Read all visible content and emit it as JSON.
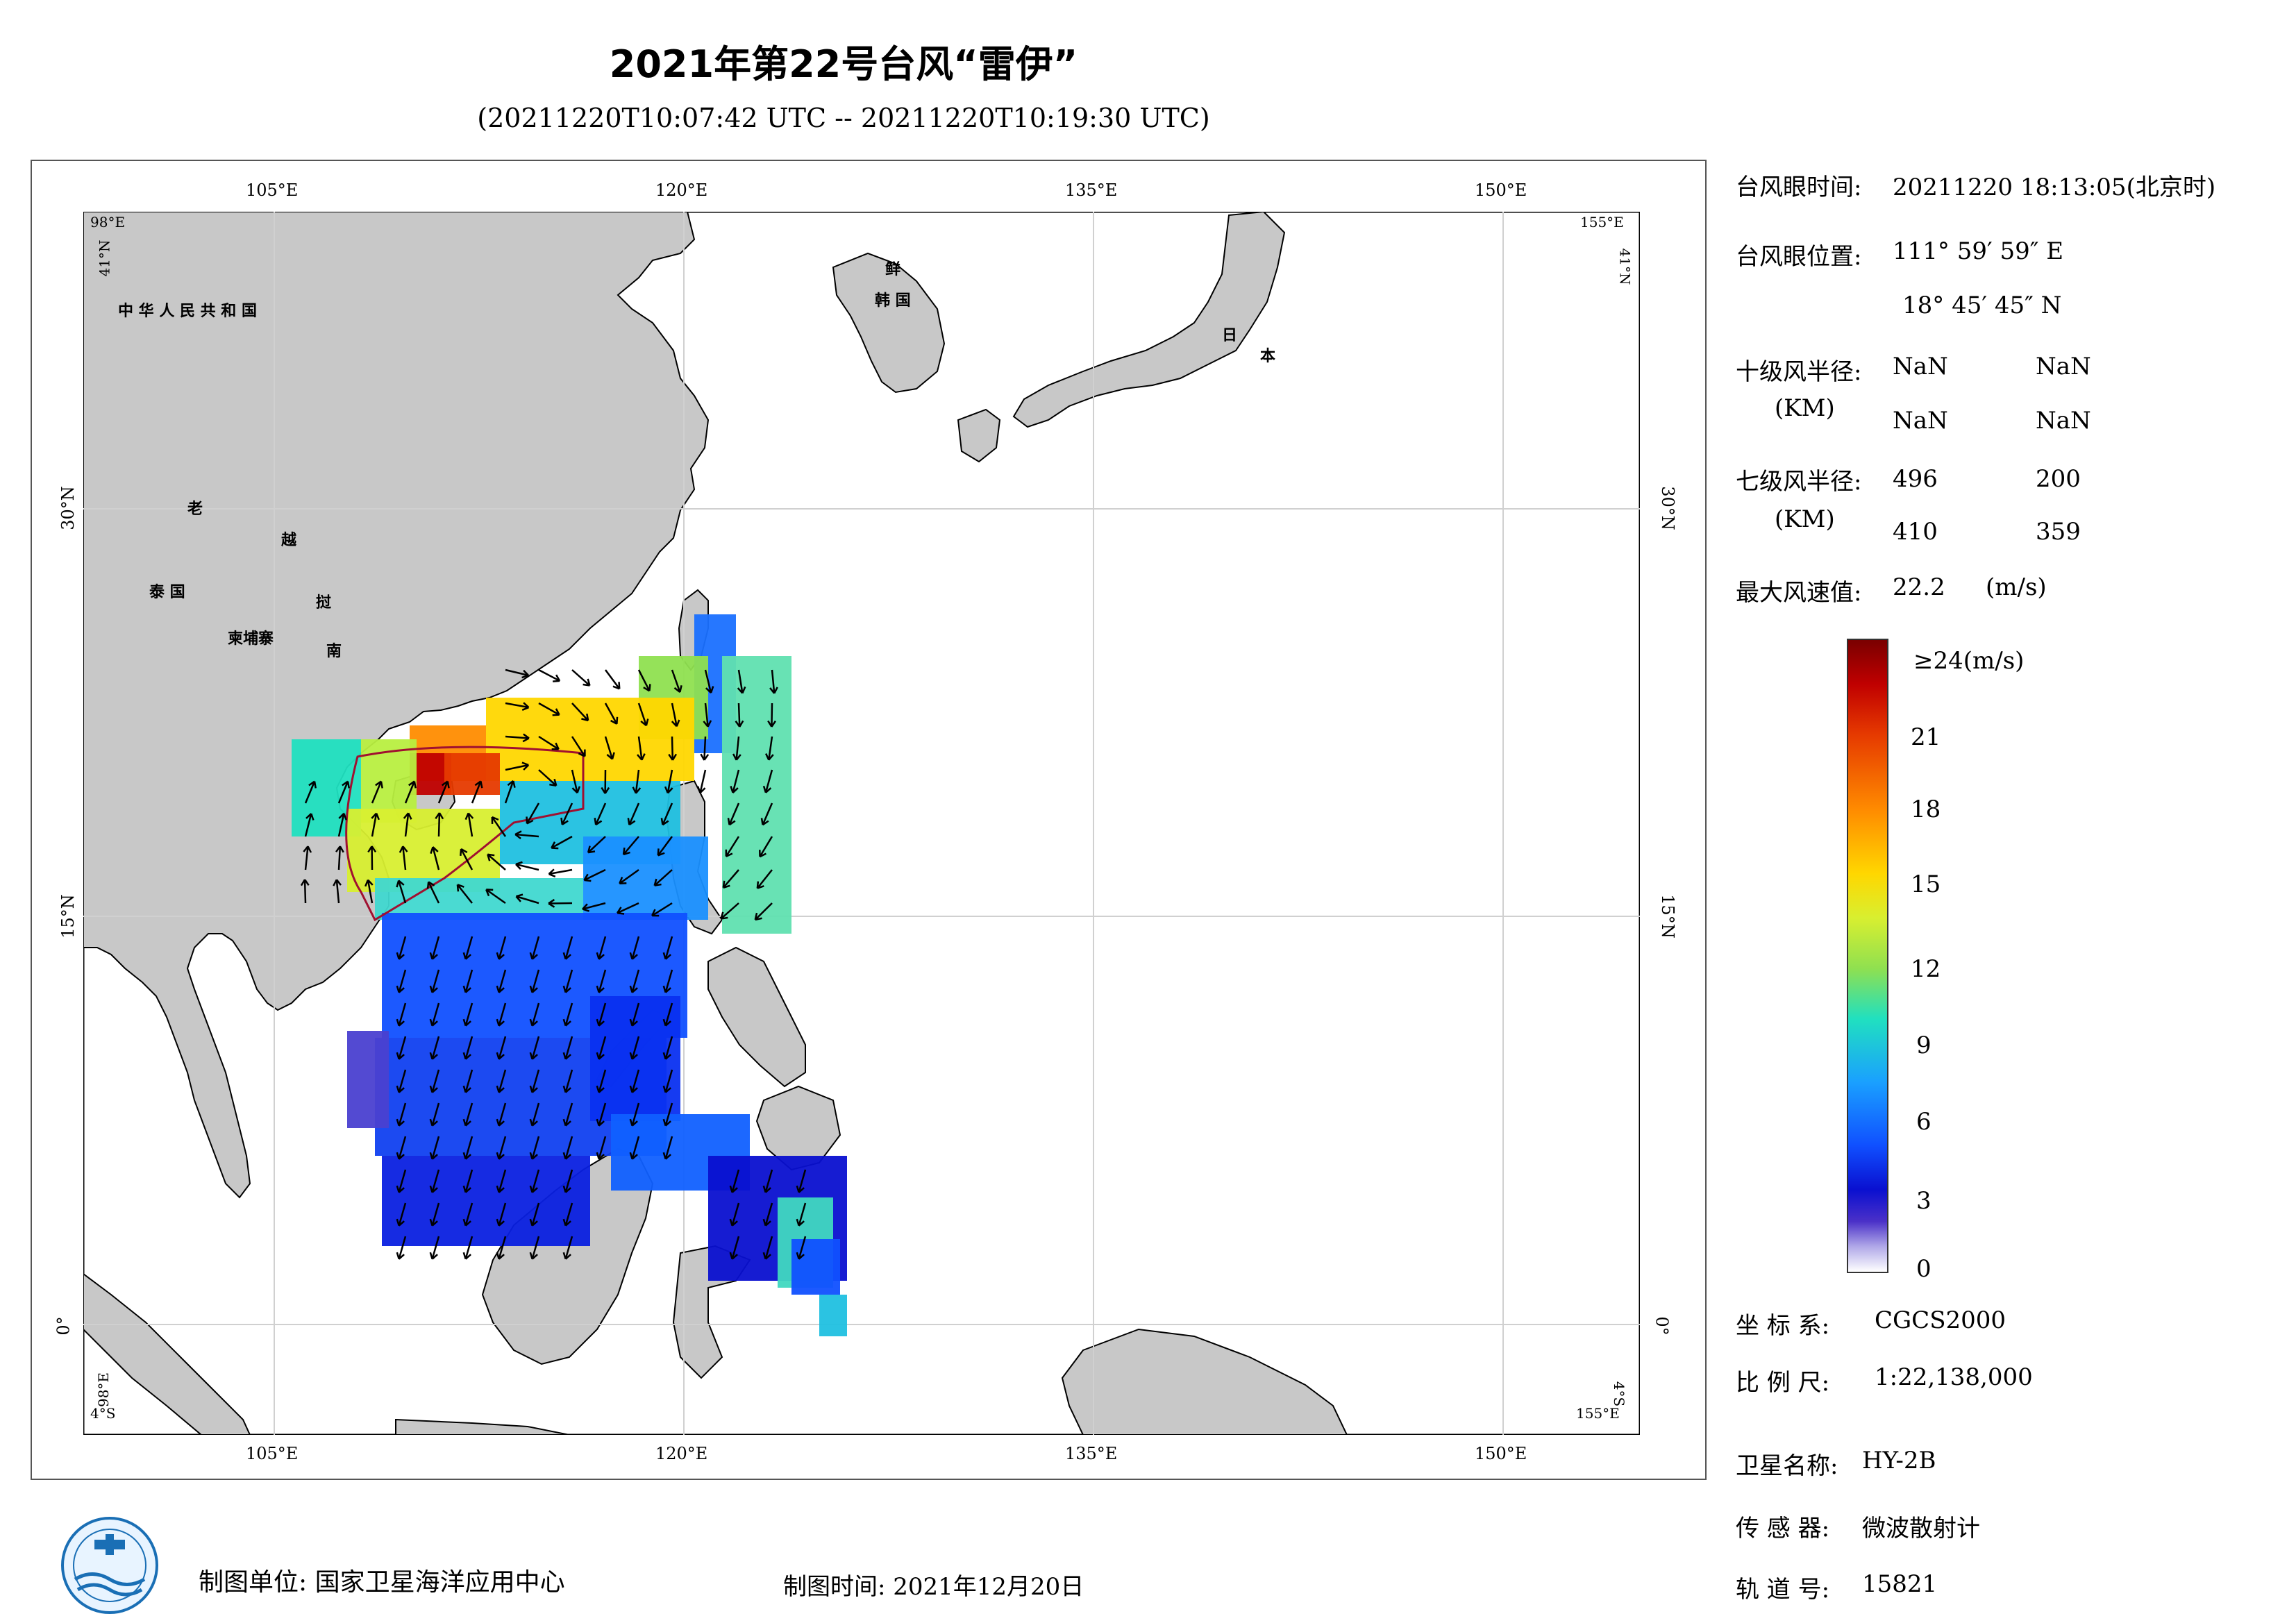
{
  "title": "2021年第22号台风“雷伊”",
  "subtitle": "(20211220T10:07:42 UTC -- 20211220T10:19:30 UTC)",
  "map": {
    "top_lon_labels": [
      "105°E",
      "120°E",
      "135°E",
      "150°E"
    ],
    "bottom_lon_labels": [
      "105°E",
      "120°E",
      "135°E",
      "150°E"
    ],
    "left_lat_labels": [
      "30°N",
      "15°N",
      "0°"
    ],
    "right_lat_labels": [
      "30°N",
      "15°N",
      "0°"
    ],
    "corner_labels": {
      "tl_lon": "98°E",
      "tl_lat": "41°N",
      "tr_lon": "155°E",
      "tr_lat": "41°N",
      "bl_lon": "98°E",
      "bl_lat": "4°S",
      "br_lon": "155°E",
      "br_lat": "4°S"
    },
    "country_labels": [
      "中 华 人 民 共 和 国",
      "老",
      "越",
      "泰 国",
      "挝",
      "柬埔寨",
      "南",
      "鲜",
      "韩 国",
      "日",
      "本"
    ],
    "land_color": "#c8c8c8",
    "coast_color": "#000000"
  },
  "info": {
    "eye_time_label": "台风眼时间:",
    "eye_time_value": "20211220 18:13:05(北京时)",
    "eye_pos_label": "台风眼位置:",
    "eye_pos_lon": "111° 59′ 59″ E",
    "eye_pos_lat": "18° 45′ 45″ N",
    "r10_label": "十级风半径:",
    "r10_unit": "(KM)",
    "r10_values": [
      "NaN",
      "NaN",
      "NaN",
      "NaN"
    ],
    "r7_label": "七级风半径:",
    "r7_unit": "(KM)",
    "r7_values": [
      "496",
      "200",
      "410",
      "359"
    ],
    "max_wind_label": "最大风速值:",
    "max_wind_value": "22.2",
    "max_wind_unit": "(m/s)"
  },
  "colorbar": {
    "labels": [
      "≥24(m/s)",
      "21",
      "18",
      "15",
      "12",
      "9",
      "6",
      "3",
      "0"
    ],
    "colors": [
      "#7a0000",
      "#c00000",
      "#e63a00",
      "#ff8c00",
      "#ffd700",
      "#8fe050",
      "#20e0c0",
      "#1aa0ff",
      "#1050ff",
      "#0a10d0",
      "#b0a8e8",
      "#ffffff"
    ]
  },
  "meta": {
    "crs_label": "坐 标 系:",
    "crs_value": "CGCS2000",
    "scale_label": "比 例 尺:",
    "scale_value": "1:22,138,000",
    "satellite_label": "卫星名称:",
    "satellite_value": "HY-2B",
    "sensor_label": "传 感 器:",
    "sensor_value": "微波散射计",
    "orbit_label": "轨 道 号:",
    "orbit_value": "15821"
  },
  "footer": {
    "producer": "制图单位: 国家卫星海洋应用中心",
    "date": "制图时间: 2021年12月20日"
  }
}
